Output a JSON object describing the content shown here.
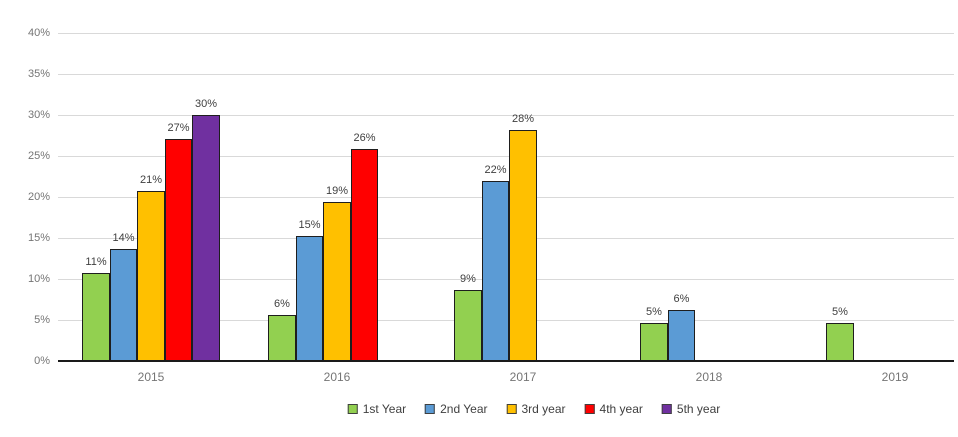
{
  "chart_data": {
    "type": "bar",
    "title": "",
    "xlabel": "",
    "ylabel": "",
    "grid": true,
    "legend_position": "bottom",
    "categories": [
      "2015",
      "2016",
      "2017",
      "2018",
      "2019"
    ],
    "series": [
      {
        "name": "1st Year",
        "color": "#92d050",
        "values": [
          11,
          6,
          9,
          5,
          5
        ],
        "labels": [
          "11%",
          "6%",
          "9%",
          "5%",
          "5%"
        ],
        "bar_heights_pct": [
          10.7,
          5.6,
          8.7,
          4.6,
          4.6
        ]
      },
      {
        "name": "2nd Year",
        "color": "#5b9bd5",
        "values": [
          14,
          15,
          22,
          6,
          null
        ],
        "labels": [
          "14%",
          "15%",
          "22%",
          "6%",
          null
        ],
        "bar_heights_pct": [
          13.6,
          15.3,
          21.9,
          6.2,
          null
        ]
      },
      {
        "name": "3rd year",
        "color": "#ffc000",
        "values": [
          21,
          19,
          28,
          null,
          null
        ],
        "labels": [
          "21%",
          "19%",
          "28%",
          null,
          null
        ],
        "bar_heights_pct": [
          20.7,
          19.4,
          28.2,
          null,
          null
        ]
      },
      {
        "name": "4th year",
        "color": "#ff0000",
        "values": [
          27,
          26,
          null,
          null,
          null
        ],
        "labels": [
          "27%",
          "26%",
          null,
          null,
          null
        ],
        "bar_heights_pct": [
          27.1,
          25.9,
          null,
          null,
          null
        ]
      },
      {
        "name": "5th year",
        "color": "#7030a0",
        "values": [
          30,
          null,
          null,
          null,
          null
        ],
        "labels": [
          "30%",
          null,
          null,
          null,
          null
        ],
        "bar_heights_pct": [
          30.0,
          null,
          null,
          null,
          null
        ]
      }
    ],
    "y_axis": {
      "min": 0,
      "max": 40,
      "step": 5,
      "unit": "%",
      "tick_labels": [
        "0%",
        "5%",
        "10%",
        "15%",
        "20%",
        "25%",
        "30%",
        "35%",
        "40%"
      ]
    },
    "style": {
      "gridline_color": "#d9d9d9",
      "axis_line_color": "#1a1a1a",
      "tick_label_color": "#757575",
      "data_label_color": "#3f3f3f",
      "bar_border_color": "#1e1e1e",
      "background": "#ffffff"
    }
  }
}
